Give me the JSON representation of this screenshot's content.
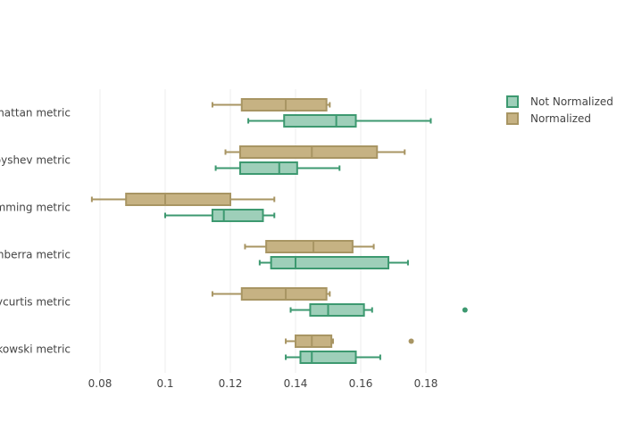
{
  "chart_data": {
    "type": "box",
    "orientation": "horizontal",
    "categories": [
      "Manhattan metric",
      "Chebyshev metric",
      "Hamming metric",
      "Canberra metric",
      "Braycurtis metric",
      "Minkowski metric"
    ],
    "xlim": [
      0.07,
      0.196
    ],
    "xticks": [
      0.08,
      0.1,
      0.12,
      0.14,
      0.16,
      0.18
    ],
    "xtick_labels": [
      "0.08",
      "0.1",
      "0.12",
      "0.14",
      "0.16",
      "0.18"
    ],
    "grid": true,
    "legend_position": "top-right",
    "series": [
      {
        "name": "Not Normalized",
        "stroke": "#3d9970",
        "fill": "#9ecfb9",
        "boxes": [
          {
            "category": "Manhattan metric",
            "min": 0.1255,
            "q1": 0.1365,
            "median": 0.1525,
            "q3": 0.1585,
            "max": 0.1815,
            "outliers": []
          },
          {
            "category": "Chebyshev metric",
            "min": 0.1155,
            "q1": 0.123,
            "median": 0.135,
            "q3": 0.1405,
            "max": 0.1535,
            "outliers": []
          },
          {
            "category": "Hamming metric",
            "min": 0.1,
            "q1": 0.1145,
            "median": 0.118,
            "q3": 0.13,
            "max": 0.1335,
            "outliers": []
          },
          {
            "category": "Canberra metric",
            "min": 0.129,
            "q1": 0.1325,
            "median": 0.14,
            "q3": 0.1685,
            "max": 0.1745,
            "outliers": []
          },
          {
            "category": "Braycurtis metric",
            "min": 0.1385,
            "q1": 0.1445,
            "median": 0.15,
            "q3": 0.161,
            "max": 0.1635,
            "outliers": [
              0.192
            ]
          },
          {
            "category": "Minkowski metric",
            "min": 0.137,
            "q1": 0.1415,
            "median": 0.145,
            "q3": 0.1585,
            "max": 0.166,
            "outliers": []
          }
        ]
      },
      {
        "name": "Normalized",
        "stroke": "#a89563",
        "fill": "#c6b283",
        "boxes": [
          {
            "category": "Manhattan metric",
            "min": 0.1145,
            "q1": 0.1235,
            "median": 0.137,
            "q3": 0.1495,
            "max": 0.1505,
            "outliers": []
          },
          {
            "category": "Chebyshev metric",
            "min": 0.1185,
            "q1": 0.123,
            "median": 0.145,
            "q3": 0.165,
            "max": 0.1735,
            "outliers": []
          },
          {
            "category": "Hamming metric",
            "min": 0.0775,
            "q1": 0.088,
            "median": 0.1,
            "q3": 0.12,
            "max": 0.1335,
            "outliers": []
          },
          {
            "category": "Canberra metric",
            "min": 0.1245,
            "q1": 0.131,
            "median": 0.1455,
            "q3": 0.1575,
            "max": 0.164,
            "outliers": []
          },
          {
            "category": "Braycurtis metric",
            "min": 0.1145,
            "q1": 0.1235,
            "median": 0.137,
            "q3": 0.1495,
            "max": 0.1505,
            "outliers": []
          },
          {
            "category": "Minkowski metric",
            "min": 0.137,
            "q1": 0.14,
            "median": 0.145,
            "q3": 0.151,
            "max": 0.1515,
            "outliers": [
              0.1755
            ]
          }
        ]
      }
    ]
  }
}
